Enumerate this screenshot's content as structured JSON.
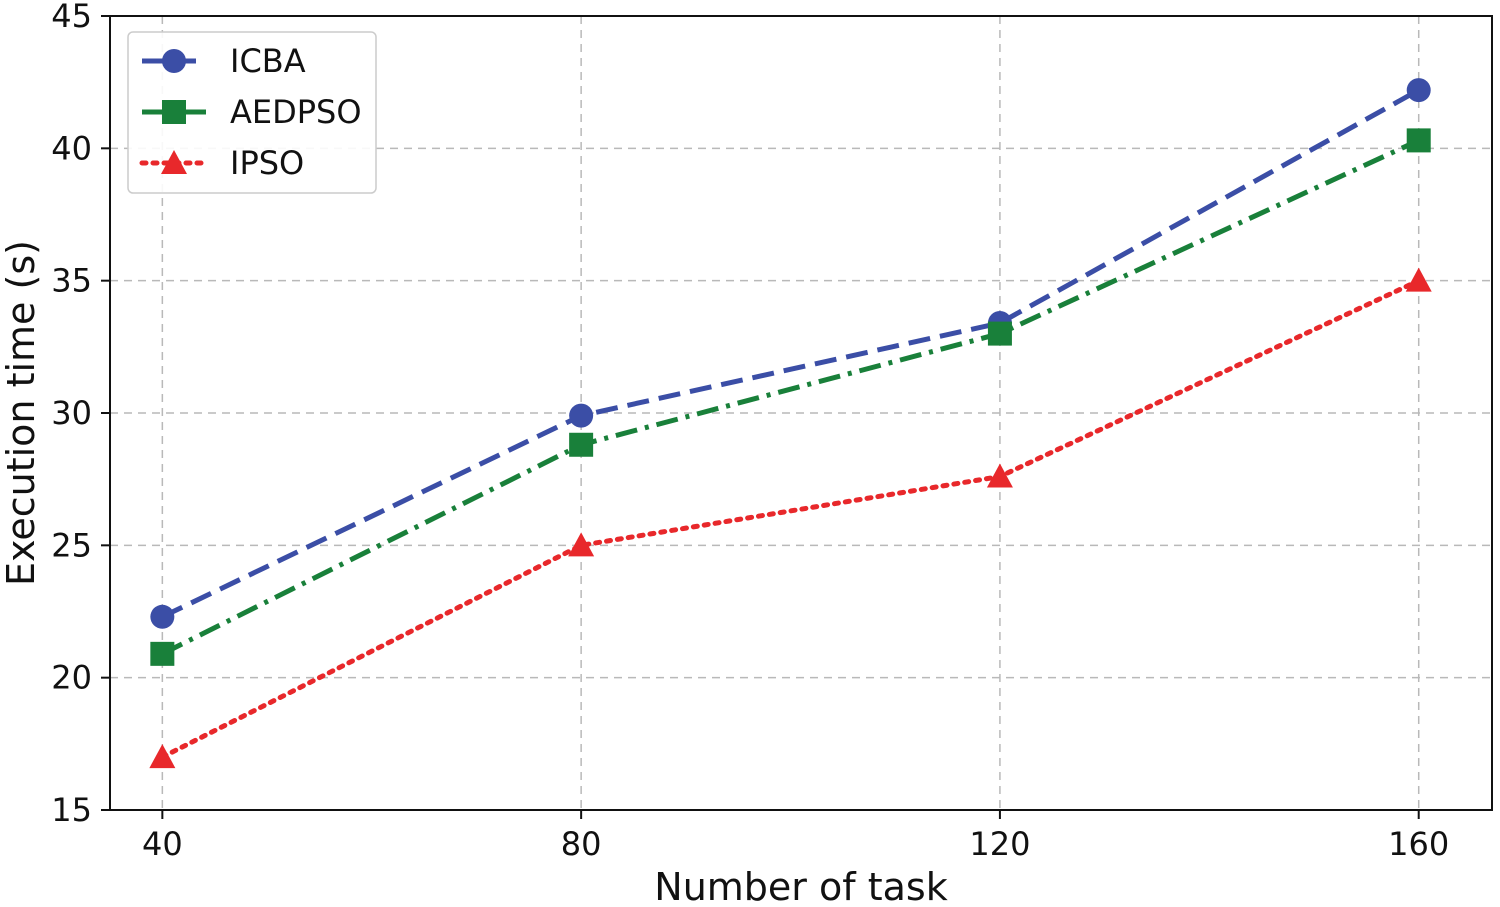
{
  "chart_data": {
    "type": "line",
    "title": "",
    "xlabel": "Number of task",
    "ylabel": "Execution time (s)",
    "x": [
      40,
      80,
      120,
      160
    ],
    "x_tick_labels": [
      "40",
      "80",
      "120",
      "160"
    ],
    "ylim": [
      15,
      45
    ],
    "y_ticks": [
      15,
      20,
      25,
      30,
      35,
      40,
      45
    ],
    "y_tick_labels": [
      "15",
      "20",
      "25",
      "30",
      "35",
      "40",
      "45"
    ],
    "grid": true,
    "legend_position": "top-left",
    "series": [
      {
        "name": "ICBA",
        "values": [
          22.3,
          29.9,
          33.4,
          42.2
        ],
        "color": "#3b4ea6",
        "marker": "circle",
        "line_style": "dashed"
      },
      {
        "name": "AEDPSO",
        "values": [
          20.9,
          28.8,
          33.0,
          40.3
        ],
        "color": "#19803a",
        "marker": "square",
        "line_style": "dash-dot"
      },
      {
        "name": "IPSO",
        "values": [
          17.0,
          25.0,
          27.6,
          35.0
        ],
        "color": "#e8282b",
        "marker": "triangle",
        "line_style": "dotted"
      }
    ]
  }
}
